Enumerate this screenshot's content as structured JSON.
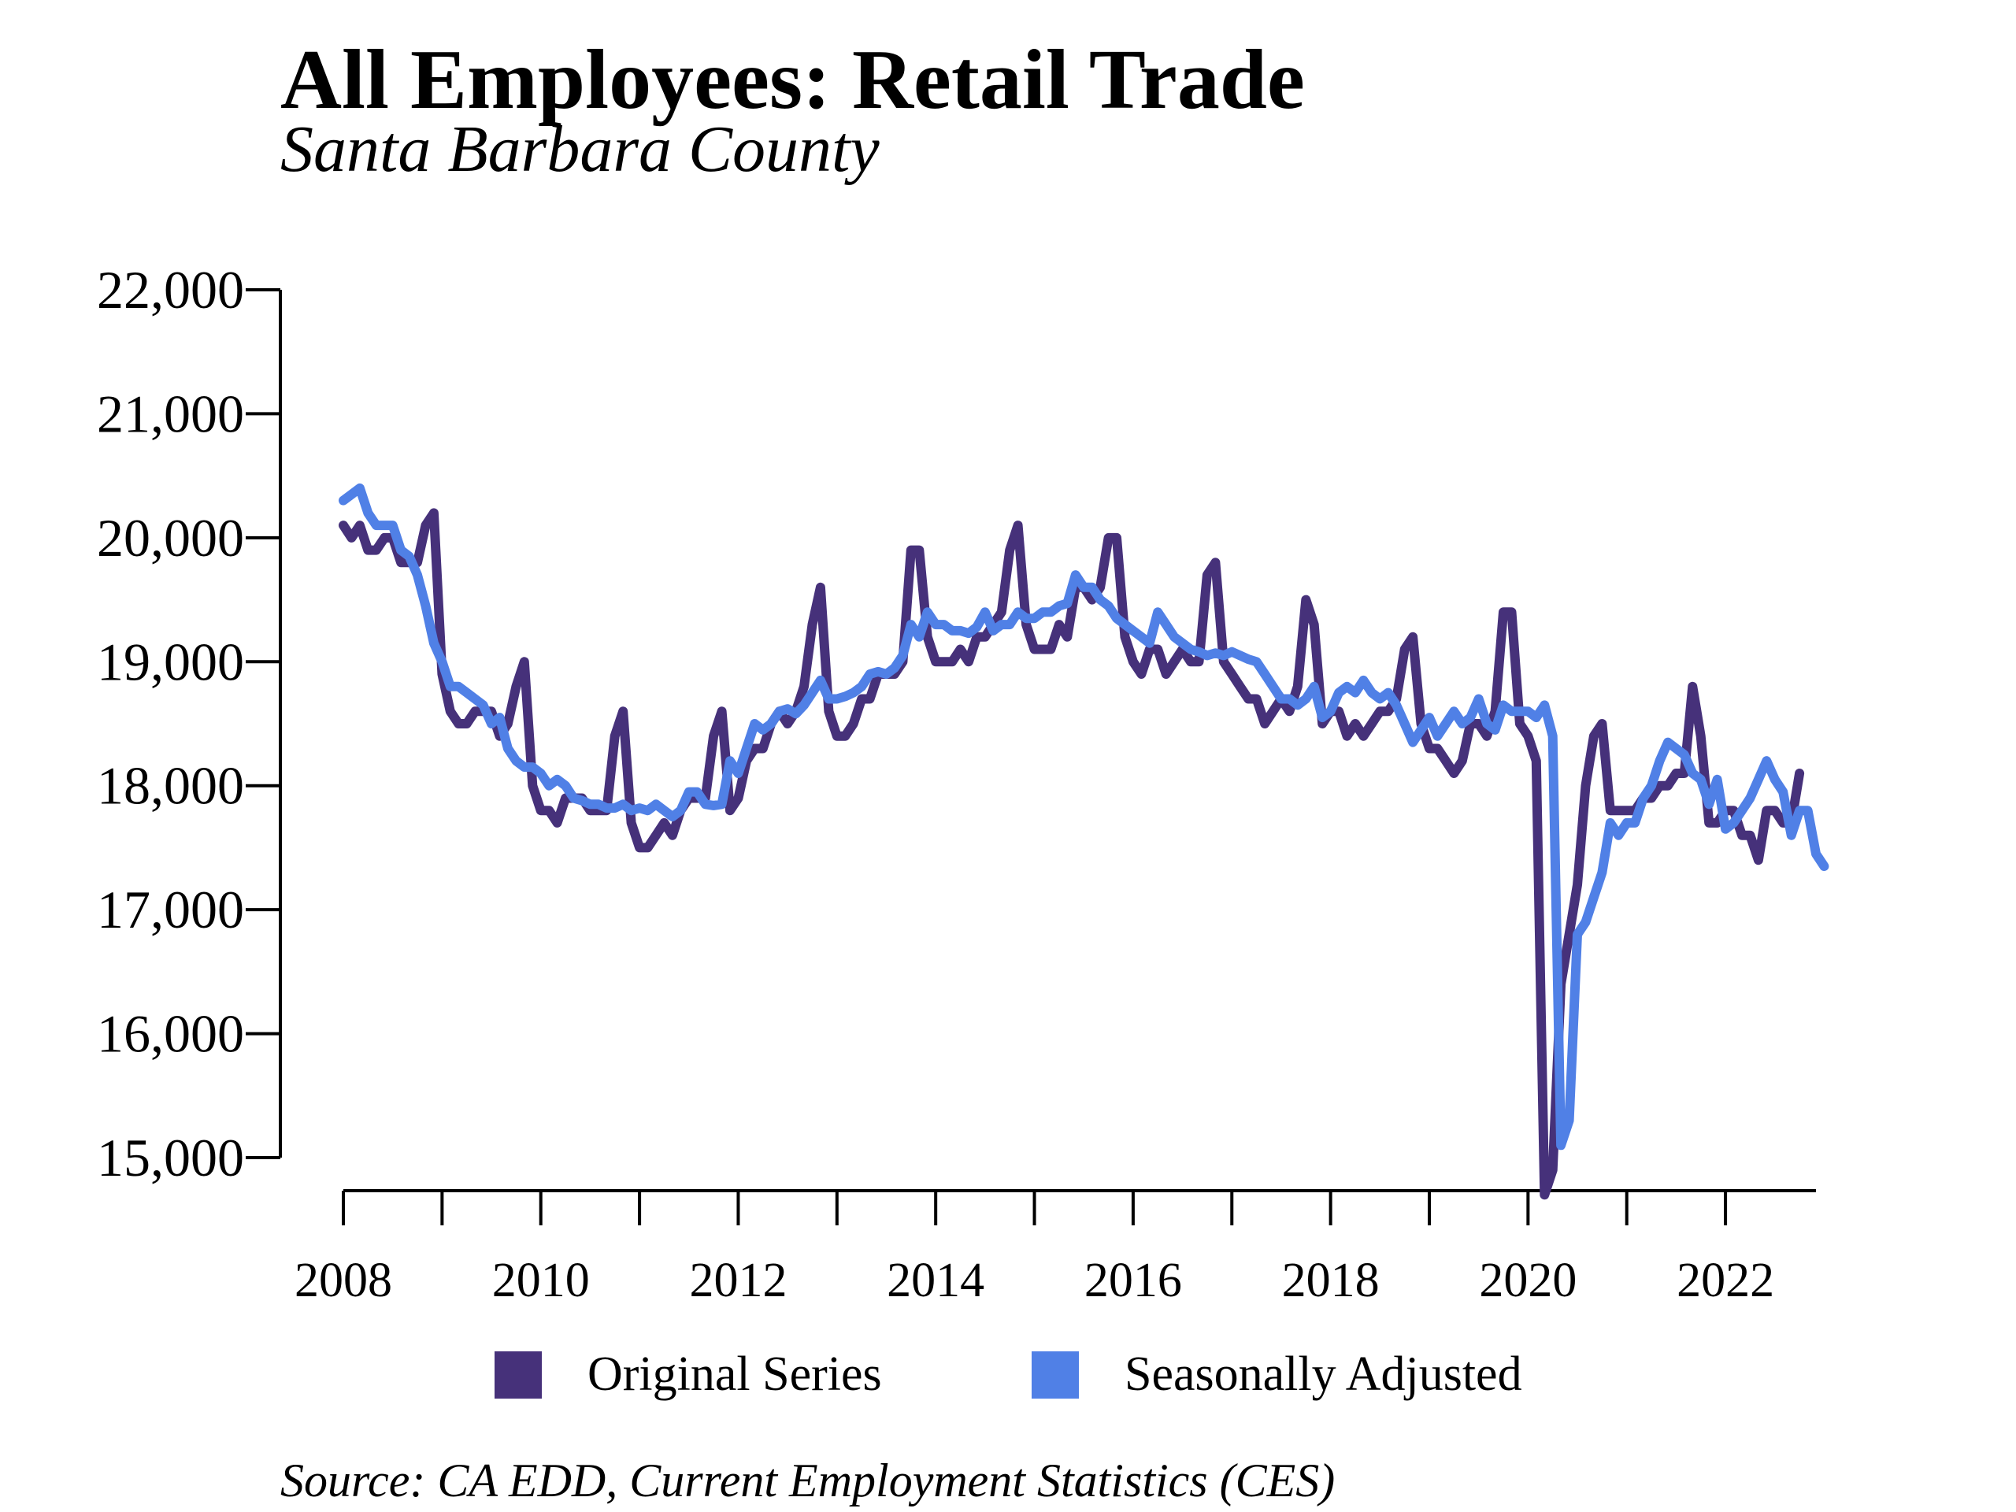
{
  "chart_data": {
    "type": "line",
    "title": "All Employees: Retail Trade",
    "subtitle": "Santa Barbara County",
    "source": "Source: CA EDD, Current Employment Statistics (CES)",
    "xlabel": "",
    "ylabel": "",
    "x_start": "2008-01",
    "x_end": "2022-12",
    "xticks": [
      "2008",
      "2010",
      "2012",
      "2014",
      "2016",
      "2018",
      "2020",
      "2022"
    ],
    "ylim": [
      15000,
      22000
    ],
    "yticks": [
      "15,000",
      "16,000",
      "17,000",
      "18,000",
      "19,000",
      "20,000",
      "21,000",
      "22,000"
    ],
    "grid": false,
    "legend_position": "bottom",
    "series": [
      {
        "name": "Original Series",
        "color": "#46317A",
        "values": [
          20100,
          20000,
          20100,
          19900,
          19900,
          20000,
          20000,
          19800,
          19800,
          19800,
          20100,
          20200,
          18900,
          18600,
          18500,
          18500,
          18600,
          18600,
          18600,
          18400,
          18500,
          18800,
          19000,
          18000,
          17800,
          17800,
          17700,
          17900,
          17900,
          17900,
          17800,
          17800,
          17800,
          18400,
          18600,
          17700,
          17500,
          17500,
          17600,
          17700,
          17600,
          17800,
          17900,
          17900,
          17900,
          18400,
          18600,
          17800,
          17900,
          18200,
          18300,
          18300,
          18500,
          18600,
          18500,
          18600,
          18800,
          19300,
          19600,
          18600,
          18400,
          18400,
          18500,
          18700,
          18700,
          18900,
          18900,
          18900,
          19000,
          19900,
          19900,
          19200,
          19000,
          19000,
          19000,
          19100,
          19000,
          19200,
          19200,
          19300,
          19400,
          19900,
          20100,
          19300,
          19100,
          19100,
          19100,
          19300,
          19200,
          19600,
          19600,
          19500,
          19600,
          20000,
          20000,
          19200,
          19000,
          18900,
          19100,
          19100,
          18900,
          19000,
          19100,
          19000,
          19000,
          19700,
          19800,
          19000,
          18900,
          18800,
          18700,
          18700,
          18500,
          18600,
          18700,
          18600,
          18800,
          19500,
          19300,
          18500,
          18600,
          18600,
          18400,
          18500,
          18400,
          18500,
          18600,
          18600,
          18700,
          19100,
          19200,
          18500,
          18300,
          18300,
          18200,
          18100,
          18200,
          18500,
          18500,
          18400,
          18600,
          19400,
          19400,
          18500,
          18400,
          18200,
          14700,
          14900,
          16400,
          16800,
          17200,
          18000,
          18400,
          18500,
          17800,
          17800,
          17800,
          17800,
          17900,
          17900,
          18000,
          18000,
          18100,
          18100,
          18800,
          18400,
          17700,
          17700,
          17800,
          17800,
          17600,
          17600,
          17400,
          17800,
          17800,
          17700,
          17700,
          18100
        ]
      },
      {
        "name": "Seasonally Adjusted",
        "color": "#5080E6",
        "values": [
          20300,
          20350,
          20400,
          20200,
          20100,
          20100,
          20100,
          19900,
          19850,
          19700,
          19450,
          19150,
          19000,
          18800,
          18800,
          18750,
          18700,
          18650,
          18500,
          18550,
          18300,
          18200,
          18150,
          18150,
          18100,
          18000,
          18050,
          18000,
          17900,
          17880,
          17850,
          17850,
          17820,
          17820,
          17850,
          17800,
          17820,
          17800,
          17850,
          17800,
          17750,
          17800,
          17950,
          17950,
          17850,
          17840,
          17850,
          18200,
          18100,
          18300,
          18500,
          18450,
          18500,
          18600,
          18620,
          18580,
          18650,
          18750,
          18850,
          18700,
          18700,
          18720,
          18750,
          18800,
          18900,
          18920,
          18900,
          18950,
          19050,
          19300,
          19200,
          19400,
          19300,
          19300,
          19250,
          19250,
          19230,
          19280,
          19400,
          19250,
          19300,
          19300,
          19400,
          19350,
          19350,
          19400,
          19400,
          19450,
          19470,
          19700,
          19600,
          19600,
          19500,
          19450,
          19350,
          19300,
          19250,
          19200,
          19150,
          19400,
          19300,
          19200,
          19150,
          19100,
          19080,
          19050,
          19070,
          19050,
          19080,
          19050,
          19020,
          19000,
          18900,
          18800,
          18700,
          18700,
          18650,
          18700,
          18800,
          18550,
          18600,
          18750,
          18800,
          18750,
          18850,
          18750,
          18700,
          18750,
          18650,
          18500,
          18350,
          18450,
          18550,
          18400,
          18500,
          18600,
          18500,
          18550,
          18700,
          18500,
          18450,
          18650,
          18600,
          18600,
          18600,
          18550,
          18650,
          18400,
          15100,
          15300,
          16800,
          16900,
          17100,
          17300,
          17700,
          17600,
          17700,
          17700,
          17900,
          18000,
          18200,
          18350,
          18300,
          18250,
          18100,
          18050,
          17850,
          18050,
          17650,
          17700,
          17800,
          17900,
          18050,
          18200,
          18050,
          17950,
          17600,
          17800,
          17800,
          17450,
          17350
        ]
      }
    ]
  }
}
